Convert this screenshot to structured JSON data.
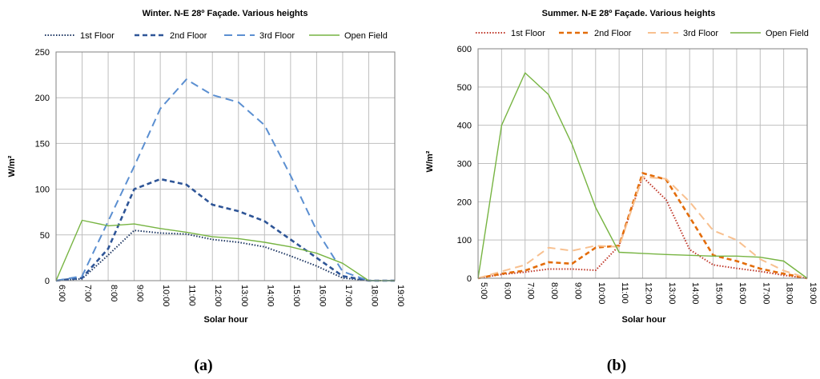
{
  "chart_data": [
    {
      "type": "line",
      "title": "Winter. N-E 28º Façade. Various heights",
      "xlabel": "Solar hour",
      "ylabel": "W/m²",
      "panel_label": "(a)",
      "ylim": [
        0,
        250
      ],
      "yticks": [
        0,
        50,
        100,
        150,
        200,
        250
      ],
      "categories": [
        "6:00",
        "7:00",
        "8:00",
        "9:00",
        "10:00",
        "11:00",
        "12:00",
        "13:00",
        "14:00",
        "15:00",
        "16:00",
        "17:00",
        "18:00",
        "19:00"
      ],
      "grid": true,
      "legend": "top",
      "series": [
        {
          "name": "1st Floor",
          "color": "#1f3864",
          "dash": "dotted",
          "values": [
            0,
            2,
            28,
            55,
            52,
            51,
            45,
            42,
            37,
            27,
            16,
            3,
            0,
            0
          ]
        },
        {
          "name": "2nd Floor",
          "color": "#2e5597",
          "dash": "dashed",
          "values": [
            0,
            3,
            35,
            100,
            111,
            105,
            83,
            76,
            65,
            45,
            25,
            5,
            0,
            0
          ]
        },
        {
          "name": "3rd Floor",
          "color": "#5b8fd1",
          "dash": "longdashed",
          "values": [
            0,
            5,
            65,
            125,
            188,
            220,
            203,
            195,
            170,
            115,
            55,
            10,
            0,
            0
          ]
        },
        {
          "name": "Open Field",
          "color": "#77b442",
          "dash": "solid",
          "values": [
            0,
            66,
            60,
            62,
            57,
            53,
            48,
            46,
            42,
            37,
            30,
            19,
            0,
            0
          ]
        }
      ]
    },
    {
      "type": "line",
      "title": "Summer. N-E 28º Façade. Various heights",
      "xlabel": "Solar hour",
      "ylabel": "W/m²",
      "panel_label": "(b)",
      "ylim": [
        0,
        600
      ],
      "yticks": [
        0,
        100,
        200,
        300,
        400,
        500,
        600
      ],
      "categories": [
        "5:00",
        "6:00",
        "7:00",
        "8:00",
        "9:00",
        "10:00",
        "11:00",
        "12:00",
        "13:00",
        "14:00",
        "15:00",
        "16:00",
        "17:00",
        "18:00",
        "19:00"
      ],
      "grid": true,
      "legend": "top",
      "series": [
        {
          "name": "1st Floor",
          "color": "#c0392b",
          "dash": "dotted",
          "values": [
            0,
            10,
            16,
            24,
            24,
            21,
            85,
            265,
            205,
            75,
            35,
            26,
            18,
            8,
            0
          ]
        },
        {
          "name": "2nd Floor",
          "color": "#e36c09",
          "dash": "dashed",
          "values": [
            0,
            12,
            20,
            42,
            38,
            80,
            85,
            275,
            258,
            160,
            60,
            45,
            25,
            12,
            0
          ]
        },
        {
          "name": "3rd Floor",
          "color": "#f8c08f",
          "dash": "longdashed",
          "values": [
            0,
            18,
            35,
            80,
            72,
            85,
            82,
            265,
            260,
            200,
            125,
            100,
            50,
            20,
            0
          ]
        },
        {
          "name": "Open Field",
          "color": "#77b442",
          "dash": "solid",
          "values": [
            0,
            400,
            537,
            480,
            350,
            185,
            68,
            65,
            62,
            60,
            58,
            58,
            55,
            45,
            0
          ]
        }
      ]
    }
  ]
}
